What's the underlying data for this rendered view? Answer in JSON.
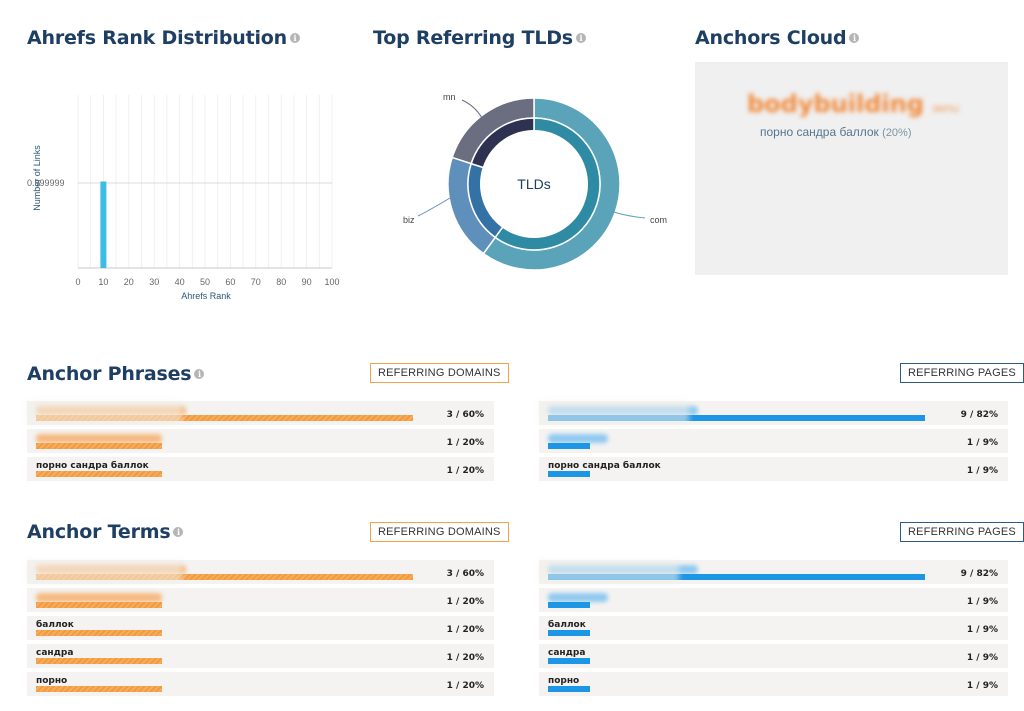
{
  "rank": {
    "title": "Ahrefs Rank Distribution",
    "chart_data": {
      "type": "bar",
      "x": [
        10
      ],
      "values": [
        1
      ],
      "xticks": [
        "0",
        "10",
        "20",
        "30",
        "40",
        "50",
        "60",
        "70",
        "80",
        "90",
        "100"
      ],
      "xlabel": "Ahrefs Rank",
      "ylabel": "Number of Links",
      "ytick": "0.999999",
      "xlim": [
        0,
        100
      ],
      "ylim": [
        0,
        2
      ],
      "bar_color": "#3bbde4"
    }
  },
  "tlds": {
    "title": "Top Referring TLDs",
    "center_label": "TLDs",
    "chart_data": {
      "type": "pie",
      "outer": [
        {
          "name": "com",
          "value": 60,
          "color": "#5aa3b9"
        },
        {
          "name": "biz",
          "value": 20,
          "color": "#5f8fbb"
        },
        {
          "name": "mn",
          "value": 20,
          "color": "#6b6d80"
        }
      ],
      "inner": [
        {
          "name": "com",
          "value": 60,
          "color": "#2f8ba3"
        },
        {
          "name": "biz",
          "value": 20,
          "color": "#3472a6"
        },
        {
          "name": "mn",
          "value": 20,
          "color": "#2e3150"
        }
      ]
    }
  },
  "cloud": {
    "title": "Anchors Cloud",
    "top_term": "bodybuilding",
    "top_pct": "(60%)",
    "term": "порно сандра баллок",
    "term_pct": "(20%)"
  },
  "phrases": {
    "title": "Anchor Phrases",
    "domains_button": "REFERRING DOMAINS",
    "pages_button": "REFERRING PAGES",
    "domains": [
      {
        "label": "",
        "value": "3 / 60%",
        "ratio": 1.0
      },
      {
        "label": "",
        "value": "1 / 20%",
        "ratio": 0.333
      },
      {
        "label": "порно сандра баллок",
        "value": "1 / 20%",
        "ratio": 0.333
      }
    ],
    "pages": [
      {
        "label": "",
        "value": "9 / 82%",
        "ratio": 1.0
      },
      {
        "label": "",
        "value": "1 / 9%",
        "ratio": 0.111
      },
      {
        "label": "порно сандра баллок",
        "value": "1 / 9%",
        "ratio": 0.111
      }
    ]
  },
  "terms": {
    "title": "Anchor Terms",
    "domains_button": "REFERRING DOMAINS",
    "pages_button": "REFERRING PAGES",
    "domains": [
      {
        "label": "",
        "value": "3 / 60%",
        "ratio": 1.0
      },
      {
        "label": "",
        "value": "1 / 20%",
        "ratio": 0.333
      },
      {
        "label": "баллок",
        "value": "1 / 20%",
        "ratio": 0.333
      },
      {
        "label": "сандра",
        "value": "1 / 20%",
        "ratio": 0.333
      },
      {
        "label": "порно",
        "value": "1 / 20%",
        "ratio": 0.333
      }
    ],
    "pages": [
      {
        "label": "",
        "value": "9 / 82%",
        "ratio": 1.0
      },
      {
        "label": "",
        "value": "1 / 9%",
        "ratio": 0.111
      },
      {
        "label": "баллок",
        "value": "1 / 9%",
        "ratio": 0.111
      },
      {
        "label": "сандра",
        "value": "1 / 9%",
        "ratio": 0.111
      },
      {
        "label": "порно",
        "value": "1 / 9%",
        "ratio": 0.111
      }
    ]
  },
  "info_glyph": "i"
}
